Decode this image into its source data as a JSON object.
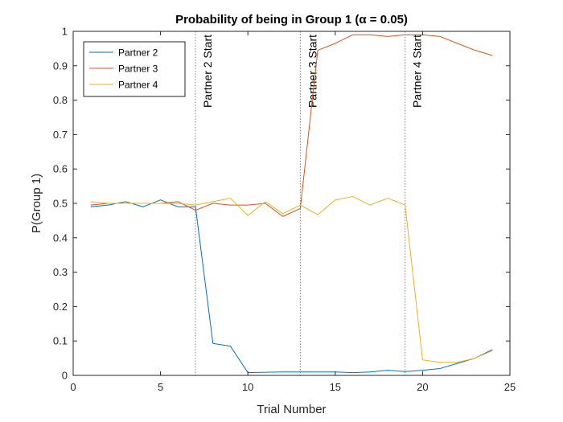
{
  "chart_data": {
    "type": "line",
    "title": "Probability of being in Group 1 (α = 0.05)",
    "xlabel": "Trial Number",
    "ylabel": "P(Group 1)",
    "xlim": [
      0,
      25
    ],
    "ylim": [
      0,
      1
    ],
    "xticks": [
      "0",
      "5",
      "10",
      "15",
      "20",
      "25"
    ],
    "yticks": [
      "0",
      "0.1",
      "0.2",
      "0.3",
      "0.4",
      "0.5",
      "0.6",
      "0.7",
      "0.8",
      "0.9",
      "1"
    ],
    "grid": false,
    "legend_position": "top-left",
    "x": [
      1,
      2,
      3,
      4,
      5,
      6,
      7,
      8,
      9,
      10,
      11,
      12,
      13,
      14,
      15,
      16,
      17,
      18,
      19,
      20,
      21,
      22,
      23,
      24
    ],
    "series": [
      {
        "name": "Partner 2",
        "color": "#0072BD",
        "values": [
          0.49,
          0.495,
          0.505,
          0.49,
          0.51,
          0.49,
          0.49,
          0.093,
          0.085,
          0.008,
          0.009,
          0.01,
          0.01,
          0.01,
          0.01,
          0.008,
          0.01,
          0.015,
          0.011,
          0.015,
          0.02,
          0.035,
          0.05,
          0.075
        ]
      },
      {
        "name": "Partner 3",
        "color": "#D95319",
        "values": [
          0.495,
          0.5,
          0.5,
          0.5,
          0.5,
          0.505,
          0.48,
          0.5,
          0.495,
          0.495,
          0.5,
          0.462,
          0.485,
          0.945,
          0.965,
          0.99,
          0.99,
          0.985,
          0.99,
          0.99,
          0.985,
          0.965,
          0.945,
          0.93
        ]
      },
      {
        "name": "Partner 4",
        "color": "#EDB120",
        "values": [
          0.505,
          0.5,
          0.5,
          0.5,
          0.5,
          0.5,
          0.495,
          0.505,
          0.515,
          0.465,
          0.505,
          0.47,
          0.495,
          0.467,
          0.51,
          0.52,
          0.495,
          0.515,
          0.495,
          0.045,
          0.038,
          0.038,
          0.05,
          0.072
        ]
      }
    ],
    "vlines": [
      {
        "x": 7,
        "label": "Partner 2 Start"
      },
      {
        "x": 13,
        "label": "Partner 3 Start"
      },
      {
        "x": 19,
        "label": "Partner 4 Start"
      }
    ]
  }
}
